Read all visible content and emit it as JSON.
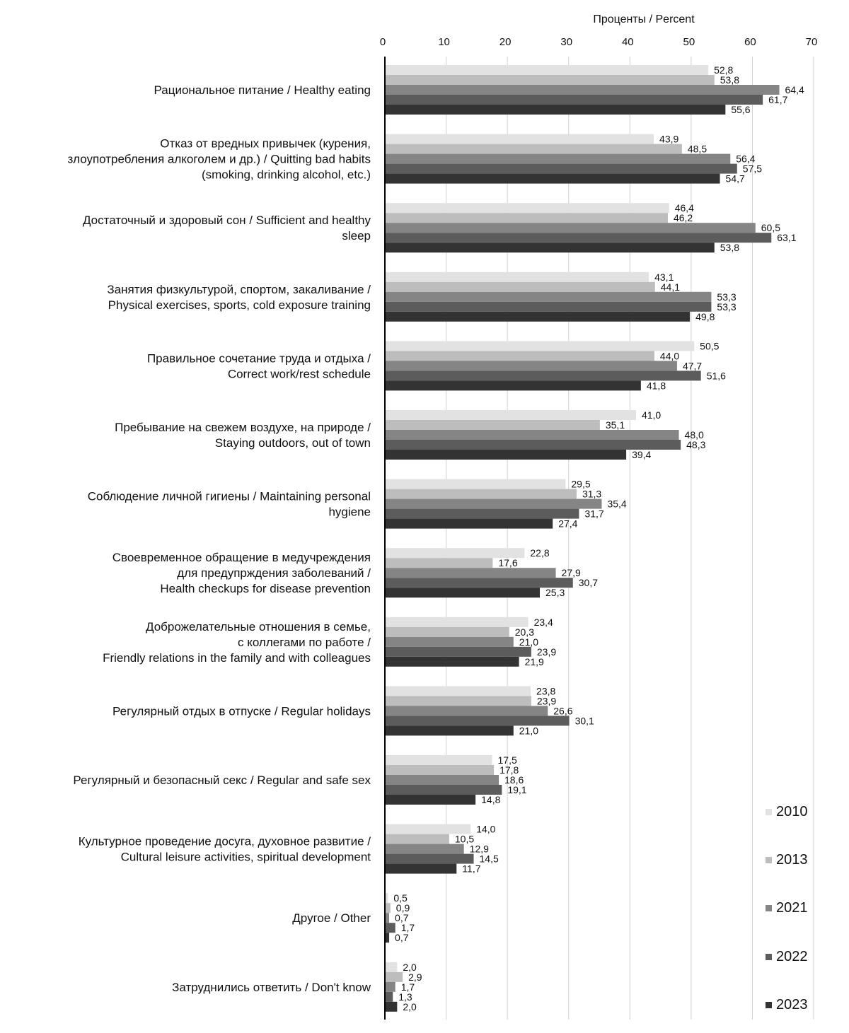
{
  "chart_data": {
    "type": "bar",
    "orientation": "horizontal",
    "xlabel": "Проценты / Percent",
    "xlim": [
      0,
      70
    ],
    "xticks": [
      "0",
      "10",
      "20",
      "30",
      "40",
      "50",
      "60",
      "70"
    ],
    "grid": true,
    "legend_position": "bottom-right",
    "categories": [
      [
        "Рациональное питание / Healthy eating"
      ],
      [
        "Отказ от вредных привычек (курения,",
        "злоупотребления алкоголем и др.) / Quitting bad habits",
        "(smoking, drinking alcohol, etc.)"
      ],
      [
        "Достаточный и здоровый сон / Sufficient and healthy",
        "sleep"
      ],
      [
        "Занятия физкультурой, спортом, закаливание /",
        "Physical exercises, sports, cold exposure training"
      ],
      [
        "Правильное сочетание труда и отдыха /",
        "Correct work/rest schedule"
      ],
      [
        "Пребывание на свежем воздухе, на природе /",
        "Staying outdoors, out of town"
      ],
      [
        "Соблюдение личной гигиены / Maintaining personal",
        "hygiene"
      ],
      [
        "Своевременное обращение в медучреждения",
        "для предупрждения заболеваний /",
        "Health checkups for disease prevention"
      ],
      [
        "Доброжелательные отношения в семье,",
        "с коллегами по работе /",
        "Friendly relations in the family and with colleagues"
      ],
      [
        "Регулярный отдых в отпуске / Regular holidays"
      ],
      [
        "Регулярный и безопасный секс / Regular and safe sex"
      ],
      [
        "Культурное проведение досуга, духовное развитие /",
        "Cultural leisure activities, spiritual development"
      ],
      [
        "Другое / Other"
      ],
      [
        "Затруднились ответить / Don't know"
      ]
    ],
    "series": [
      {
        "name": "2010",
        "color": "#e2e2e2",
        "values": [
          52.8,
          43.9,
          46.4,
          43.1,
          50.5,
          41.0,
          29.5,
          22.8,
          23.4,
          23.8,
          17.5,
          14.0,
          0.5,
          2.0
        ],
        "labels": [
          "52,8",
          "43,9",
          "46,4",
          "43,1",
          "50,5",
          "41,0",
          "29,5",
          "22,8",
          "23,4",
          "23,8",
          "17,5",
          "14,0",
          "0,5",
          "2,0"
        ]
      },
      {
        "name": "2013",
        "color": "#bdbdbd",
        "values": [
          53.8,
          48.5,
          46.2,
          44.1,
          44.0,
          35.1,
          31.3,
          17.6,
          20.3,
          23.9,
          17.8,
          10.5,
          0.9,
          2.9
        ],
        "labels": [
          "53,8",
          "48,5",
          "46,2",
          "44,1",
          "44,0",
          "35,1",
          "31,3",
          "17,6",
          "20,3",
          "23,9",
          "17,8",
          "10,5",
          "0,9",
          "2,9"
        ]
      },
      {
        "name": "2021",
        "color": "#858585",
        "values": [
          64.4,
          56.4,
          60.5,
          53.3,
          47.7,
          48.0,
          35.4,
          27.9,
          21.0,
          26.6,
          18.6,
          12.9,
          0.7,
          1.7
        ],
        "labels": [
          "64,4",
          "56,4",
          "60,5",
          "53,3",
          "47,7",
          "48,0",
          "35,4",
          "27,9",
          "21,0",
          "26,6",
          "18,6",
          "12,9",
          "0,7",
          "1,7"
        ]
      },
      {
        "name": "2022",
        "color": "#5c5c5c",
        "values": [
          61.7,
          57.5,
          63.1,
          53.3,
          51.6,
          48.3,
          31.7,
          30.7,
          23.9,
          30.1,
          19.1,
          14.5,
          1.7,
          1.3
        ],
        "labels": [
          "61,7",
          "57,5",
          "63,1",
          "53,3",
          "51,6",
          "48,3",
          "31,7",
          "30,7",
          "23,9",
          "30,1",
          "19,1",
          "14,5",
          "1,7",
          "1,3"
        ]
      },
      {
        "name": "2023",
        "color": "#333333",
        "values": [
          55.6,
          54.7,
          53.8,
          49.8,
          41.8,
          39.4,
          27.4,
          25.3,
          21.9,
          21.0,
          14.8,
          11.7,
          0.7,
          2.0
        ],
        "labels": [
          "55,6",
          "54,7",
          "53,8",
          "49,8",
          "41,8",
          "39,4",
          "27,4",
          "25,3",
          "21,9",
          "21,0",
          "14,8",
          "11,7",
          "0,7",
          "2,0"
        ]
      }
    ]
  }
}
